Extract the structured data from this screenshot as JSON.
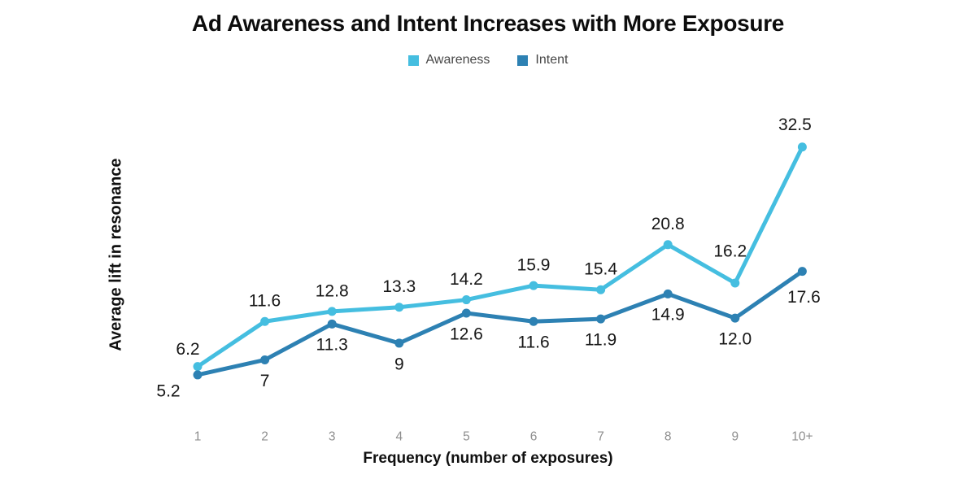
{
  "chart_data": {
    "type": "line",
    "title": "Ad Awareness and Intent Increases with More Exposure",
    "xlabel": "Frequency (number of exposures)",
    "ylabel": "Average lift in resonance",
    "categories": [
      "1",
      "2",
      "3",
      "4",
      "5",
      "6",
      "7",
      "8",
      "9",
      "10+"
    ],
    "series": [
      {
        "name": "Awareness",
        "color": "#45bee0",
        "values": [
          6.2,
          11.6,
          12.8,
          13.3,
          14.2,
          15.9,
          15.4,
          20.8,
          16.2,
          32.5
        ],
        "labels": [
          "6.2",
          "11.6",
          "12.8",
          "13.3",
          "14.2",
          "15.9",
          "15.4",
          "20.8",
          "16.2",
          "32.5"
        ]
      },
      {
        "name": "Intent",
        "color": "#2d81b3",
        "values": [
          5.2,
          7,
          11.3,
          9,
          12.6,
          11.6,
          11.9,
          14.9,
          12.0,
          17.6
        ],
        "labels": [
          "5.2",
          "7",
          "11.3",
          "9",
          "12.6",
          "11.6",
          "11.9",
          "14.9",
          "12.0",
          "17.6"
        ]
      }
    ],
    "ylim": [
      0,
      36
    ],
    "grid": false,
    "axes_drawn": false,
    "legend_position": "top-center",
    "label_color": "#171717",
    "tick_color": "#8e8e8e"
  }
}
